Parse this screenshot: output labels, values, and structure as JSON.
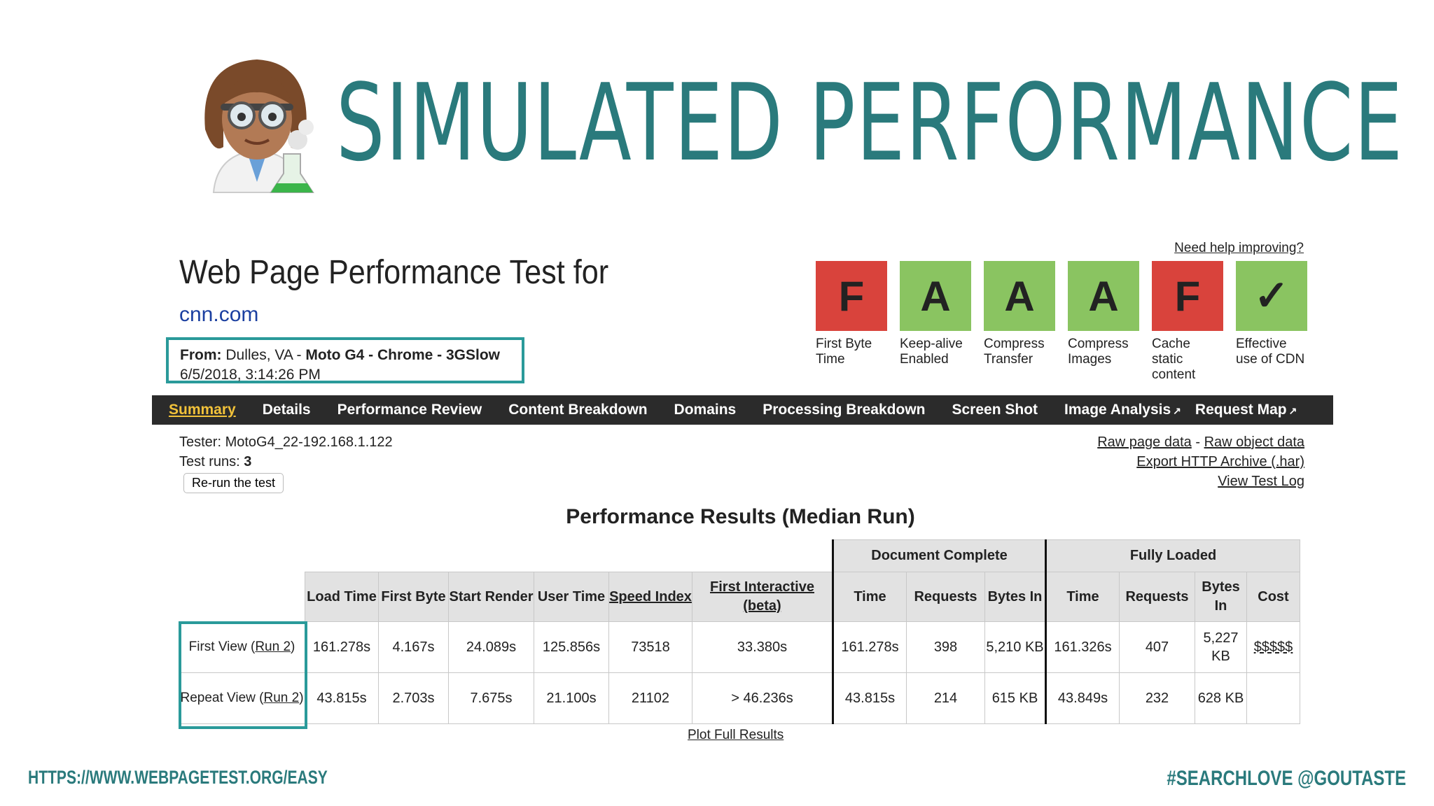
{
  "slide": {
    "title": "SIMULATED PERFORMANCE",
    "emoji_icon": "woman-scientist-emoji",
    "footer_url": "HTTPS://WWW.WEBPAGETEST.ORG/EASY",
    "footer_handle": "#SEARCHLOVE @GOUTASTE",
    "accent_color": "#2a7a7c"
  },
  "wpt": {
    "title": "Web Page Performance Test for",
    "url": "cnn.com",
    "from_label": "From:",
    "from_location": "Dulles, VA -",
    "from_device": "Moto G4 - Chrome - 3GSlow",
    "date": "6/5/2018, 3:14:26 PM",
    "need_help": "Need help improving?"
  },
  "grades": [
    {
      "grade": "F",
      "label": "First Byte Time",
      "status": "bad"
    },
    {
      "grade": "A",
      "label": "Keep-alive Enabled",
      "status": "good"
    },
    {
      "grade": "A",
      "label": "Compress Transfer",
      "status": "good"
    },
    {
      "grade": "A",
      "label": "Compress Images",
      "status": "good"
    },
    {
      "grade": "F",
      "label": "Cache static content",
      "status": "bad"
    },
    {
      "grade": "✓",
      "label": "Effective use of CDN",
      "status": "good"
    }
  ],
  "nav": [
    "Summary",
    "Details",
    "Performance Review",
    "Content Breakdown",
    "Domains",
    "Processing Breakdown",
    "Screen Shot",
    "Image Analysis",
    "Request Map"
  ],
  "tester": {
    "tester_line": "Tester: MotoG4_22-192.168.1.122",
    "runs_label": "Test runs:",
    "runs_value": "3",
    "rerun_button": "Re-run the test"
  },
  "links": {
    "raw_page": "Raw page data",
    "sep": "-",
    "raw_object": "Raw object data",
    "export_har": "Export HTTP Archive (.har)",
    "view_log": "View Test Log"
  },
  "results": {
    "title": "Performance Results (Median Run)",
    "group_document": "Document Complete",
    "group_fully": "Fully Loaded",
    "headers": {
      "load_time": "Load Time",
      "first_byte": "First Byte",
      "start_render": "Start Render",
      "user_time": "User Time",
      "speed_index": "Speed Index",
      "first_interactive": "First Interactive (beta)",
      "dc_time": "Time",
      "dc_requests": "Requests",
      "dc_bytes": "Bytes In",
      "fl_time": "Time",
      "fl_requests": "Requests",
      "fl_bytes": "Bytes In",
      "cost": "Cost"
    },
    "rows": [
      {
        "label_prefix": "First View (",
        "label_link": "Run 2",
        "label_suffix": ")",
        "cells": [
          "161.278s",
          "4.167s",
          "24.089s",
          "125.856s",
          "73518",
          "33.380s",
          "161.278s",
          "398",
          "5,210 KB",
          "161.326s",
          "407",
          "5,227 KB",
          "$$$$$"
        ]
      },
      {
        "label_prefix": "Repeat View (",
        "label_link": "Run 2",
        "label_suffix": ")",
        "cells": [
          "43.815s",
          "2.703s",
          "7.675s",
          "21.100s",
          "21102",
          "> 46.236s",
          "43.815s",
          "214",
          "615 KB",
          "43.849s",
          "232",
          "628 KB",
          ""
        ]
      }
    ],
    "plot_link": "Plot Full Results"
  }
}
